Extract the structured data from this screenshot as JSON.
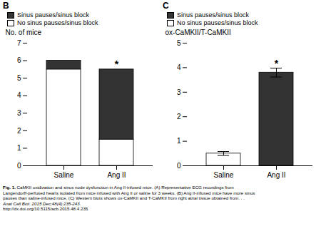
{
  "chart_data": [
    {
      "type": "bar",
      "title": "B",
      "categories": [
        "Saline",
        "Ang II"
      ],
      "series": [
        {
          "name": "No sinus pauses/sinus block",
          "color": "#ffffff",
          "values": [
            5.5,
            1.5
          ]
        },
        {
          "name": "Sinus pauses/sinus block",
          "color": "#333333",
          "values": [
            0.5,
            4.0
          ]
        }
      ],
      "stacked": true,
      "y_label": "No. of mice",
      "ylim": [
        0,
        7
      ],
      "yticks": [
        0,
        1,
        2,
        3,
        4,
        5,
        6,
        7
      ],
      "legend": "top",
      "annotations": [
        {
          "text": "*",
          "x": "Ang II"
        }
      ]
    },
    {
      "type": "bar",
      "title": "C",
      "categories": [
        "Saline",
        "Ang II"
      ],
      "series": [
        {
          "name": "No sinus pauses/sinus block",
          "color": "#ffffff",
          "values": [
            0.5,
            null
          ],
          "errors": [
            0.08,
            null
          ]
        },
        {
          "name": "Sinus pauses/sinus block",
          "color": "#333333",
          "values": [
            null,
            3.8
          ],
          "errors": [
            null,
            0.18
          ]
        }
      ],
      "stacked": false,
      "y_label": "ox-CaMKII/T-CaMKII",
      "ylim": [
        0,
        5
      ],
      "yticks": [
        0,
        1,
        2,
        3,
        4,
        5
      ],
      "legend": "top",
      "annotations": [
        {
          "text": "*",
          "x": "Ang II"
        }
      ]
    }
  ],
  "caption": [
    "Fig. 1.",
    "CaMKII oxidization and sinus node dysfunction in Ang II-infused mice. (A) Representative ECG recordings from\nLangendorff-perfused hearts isolated from mice infused with Ang II or saline for 3 weeks. (B) Ang II-infused mice have more sinus\npauses than saline-infused mice. (C) Western blots shows ox-CaMKII and T-CaMKII from right atrial tissue obtained from. . ."
  ],
  "source": "Anat Cell Biol. 2015 Dec;48(4):235-243.",
  "link": "http://dx.doi.org/10.5115/acb.2015.48.4.235"
}
